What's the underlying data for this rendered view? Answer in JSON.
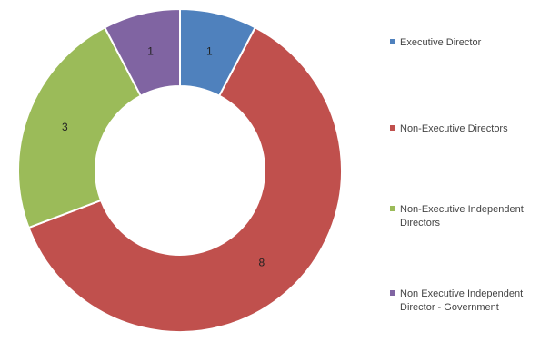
{
  "chart_data": {
    "type": "pie",
    "variant": "donut",
    "title": "",
    "categories": [
      "Executive Director",
      "Non-Executive Directors",
      "Non-Executive Independent Directors",
      "Non Executive Independent Director - Government"
    ],
    "legend_lines": [
      [
        "Executive Director"
      ],
      [
        "Non-Executive Directors"
      ],
      [
        "Non-Executive Independent",
        "Directors"
      ],
      [
        "Non Executive Independent",
        "Director - Government"
      ]
    ],
    "values": [
      1,
      8,
      3,
      1
    ],
    "data_labels": [
      "1",
      "8",
      "3",
      "1"
    ],
    "colors": [
      "#4f81bd",
      "#c0504d",
      "#9bbb59",
      "#8064a2"
    ],
    "legend_position": "right"
  }
}
